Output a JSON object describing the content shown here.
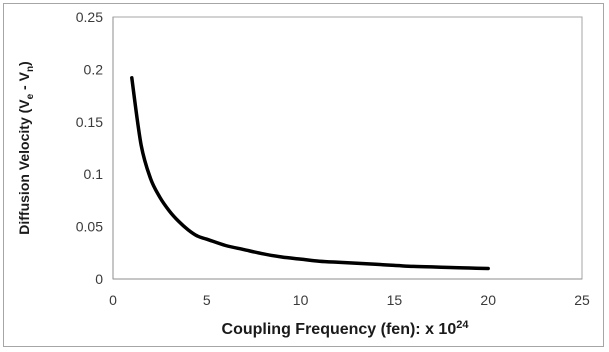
{
  "chart_data": {
    "type": "line",
    "title": "",
    "xlabel": "Coupling Frequency  (fen): x 10",
    "xlabel_superscript": "24",
    "ylabel": "Diffusion Velocity (V",
    "ylabel_sub1": "e",
    "ylabel_mid": " - V",
    "ylabel_sub2": "n",
    "ylabel_end": ")",
    "xlim": [
      0,
      25
    ],
    "ylim": [
      0,
      0.25
    ],
    "x_ticks": [
      "0",
      "5",
      "10",
      "15",
      "20",
      "25"
    ],
    "y_ticks": [
      "0",
      "0.05",
      "0.1",
      "0.15",
      "0.2",
      "0.25"
    ],
    "grid": false,
    "legend": "none",
    "line_color": "#000000",
    "series": [
      {
        "x": [
          1,
          1.5,
          2,
          2.5,
          3,
          3.5,
          4,
          4.5,
          5,
          6,
          7,
          8,
          9,
          10,
          11,
          12,
          13,
          14,
          15,
          16,
          17,
          18,
          19,
          20
        ],
        "y": [
          0.192,
          0.128,
          0.096,
          0.078,
          0.065,
          0.055,
          0.047,
          0.041,
          0.038,
          0.032,
          0.028,
          0.024,
          0.021,
          0.019,
          0.017,
          0.016,
          0.015,
          0.014,
          0.013,
          0.012,
          0.0115,
          0.011,
          0.0105,
          0.01
        ]
      }
    ]
  }
}
